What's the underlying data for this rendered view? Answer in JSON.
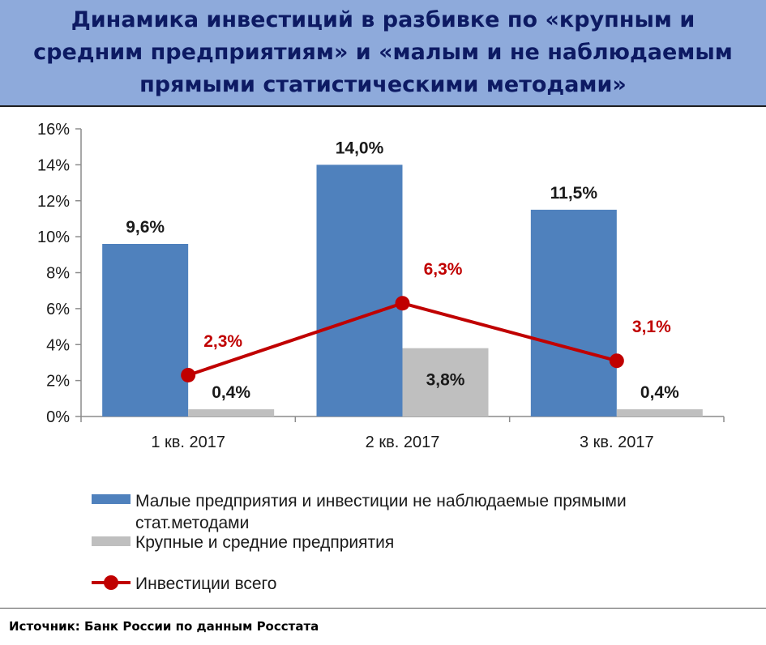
{
  "header": {
    "title": "Динамика инвестиций в разбивке по «крупным и средним предприятиям» и «малым и не наблюдаемым прямыми статистическими методами»"
  },
  "chart_data": {
    "type": "bar",
    "categories": [
      "1 кв. 2017",
      "2 кв. 2017",
      "3 кв. 2017"
    ],
    "series": [
      {
        "name": "Малые предприятия и инвестиции не наблюдаемые прямыми стат.методами",
        "type": "bar",
        "values": [
          9.6,
          14.0,
          11.5
        ],
        "labels": [
          "9,6%",
          "14,0%",
          "11,5%"
        ],
        "color": "#4f81bd"
      },
      {
        "name": "Крупные и средние предприятия",
        "type": "bar",
        "values": [
          0.4,
          3.8,
          0.4
        ],
        "labels": [
          "0,4%",
          "3,8%",
          "0,4%"
        ],
        "color": "#bfbfbf"
      },
      {
        "name": "Инвестиции всего",
        "type": "line",
        "values": [
          2.3,
          6.3,
          3.1
        ],
        "labels": [
          "2,3%",
          "6,3%",
          "3,1%"
        ],
        "color": "#c00000"
      }
    ],
    "yticks": [
      "0%",
      "2%",
      "4%",
      "6%",
      "8%",
      "10%",
      "12%",
      "14%",
      "16%"
    ],
    "ylim": [
      0,
      16
    ],
    "grid": false,
    "legend_position": "bottom"
  },
  "footer": {
    "source": "Источник: Банк России по данным Росстата"
  }
}
